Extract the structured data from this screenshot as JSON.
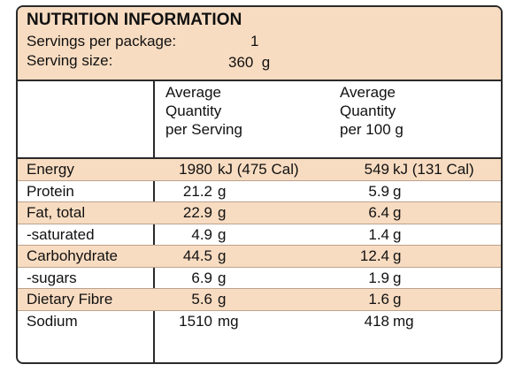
{
  "panel": {
    "title": "NUTRITION INFORMATION",
    "servings_label": "Servings per package:",
    "servings_value": "1",
    "size_label": "Serving size:",
    "size_value": "360  g"
  },
  "columns": {
    "per_serving": [
      "Average",
      "Quantity",
      "per Serving"
    ],
    "per_100": [
      "Average",
      "Quantity",
      "per 100 g"
    ]
  },
  "rows": [
    {
      "label": "Energy",
      "serv_val": "1980",
      "serv_unit": "kJ (475 Cal)",
      "p100_val": "549",
      "p100_unit": "kJ (131 Cal)"
    },
    {
      "label": "Protein",
      "serv_val": "21.2",
      "serv_unit": "g",
      "p100_val": "5.9",
      "p100_unit": "g"
    },
    {
      "label": "Fat, total",
      "serv_val": "22.9",
      "serv_unit": "g",
      "p100_val": "6.4",
      "p100_unit": "g"
    },
    {
      "label": "-saturated",
      "serv_val": "4.9",
      "serv_unit": "g",
      "p100_val": "1.4",
      "p100_unit": "g"
    },
    {
      "label": "Carbohydrate",
      "serv_val": "44.5",
      "serv_unit": "g",
      "p100_val": "12.4",
      "p100_unit": "g"
    },
    {
      "label": "-sugars",
      "serv_val": "6.9",
      "serv_unit": "g",
      "p100_val": "1.9",
      "p100_unit": "g"
    },
    {
      "label": "Dietary Fibre",
      "serv_val": "5.6",
      "serv_unit": "g",
      "p100_val": "1.6",
      "p100_unit": "g"
    },
    {
      "label": "Sodium",
      "serv_val": "1510",
      "serv_unit": "mg",
      "p100_val": "418",
      "p100_unit": "mg"
    }
  ],
  "colors": {
    "shade": "#f8dcc1",
    "border": "#2a2a2a"
  }
}
